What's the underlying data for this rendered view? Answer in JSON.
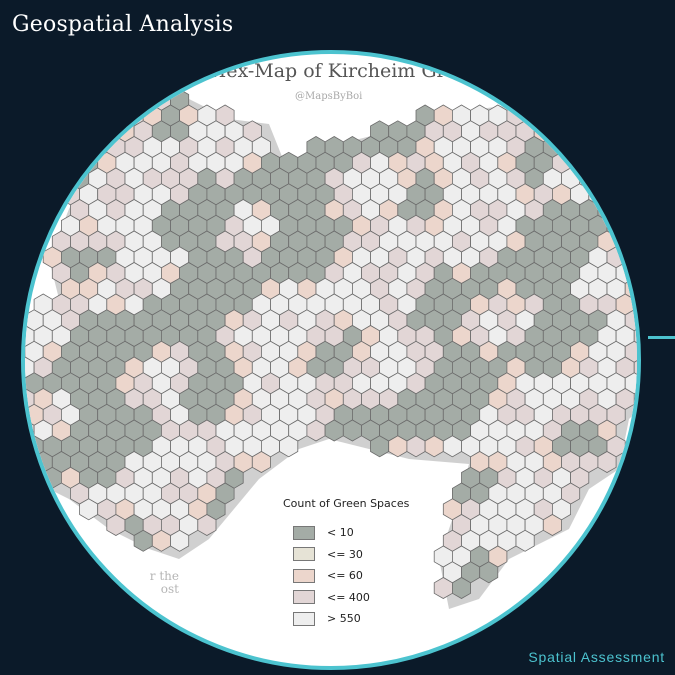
{
  "app": {
    "title": "Geospatial Analysis",
    "footer": "Spatial Assessment"
  },
  "map": {
    "title": "Hex-Map of Kircheim Green",
    "credit": "@MapsByBoi",
    "faded_text_line1": "r the",
    "faded_text_line2": "ost",
    "legend": {
      "title": "Count of Green Spaces",
      "classes": [
        {
          "label": "< 10",
          "color": "#a4aca6"
        },
        {
          "label": "<= 30",
          "color": "#e6e3d6"
        },
        {
          "label": "<= 60",
          "color": "#ecd6cc"
        },
        {
          "label": "<= 400",
          "color": "#e2d6d6"
        },
        {
          "label": "> 550",
          "color": "#eeeeee"
        }
      ]
    }
  },
  "colors": {
    "background": "#0b1a29",
    "accent": "#4cc3cf",
    "hex_stroke": "#6b6b6b"
  }
}
